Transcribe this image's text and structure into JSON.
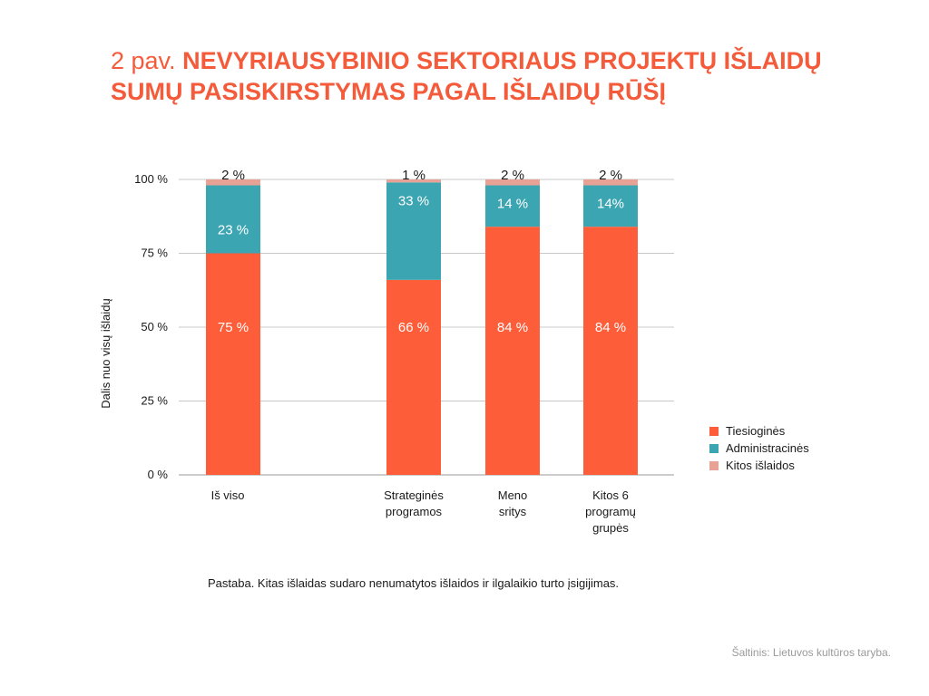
{
  "title_prefix": "2 pav.",
  "title_main": "NEVYRIAUSYBINIO SEKTORIAUS PROJEKTŲ IŠLAIDŲ SUMŲ PASISKIRSTYMAS PAGAL IŠLAIDŲ RŪŠĮ",
  "note": "Pastaba. Kitas išlaidas sudaro nenumatytos išlaidos ir ilgalaikio turto įsigijimas.",
  "source": "Šaltinis: Lietuvos kultūros taryba.",
  "colors": {
    "tiesiogines": "#fe5d3a",
    "administracines": "#3ba5b2",
    "kitos": "#e8a195",
    "title": "#f45b3a",
    "grid": "#c8c8c8"
  },
  "chart_data": {
    "type": "bar",
    "stacked": true,
    "ylabel": "Dalis nuo visų išlaidų",
    "ylim": [
      0,
      100
    ],
    "yticks": [
      "0 %",
      "25 %",
      "50 %",
      "75 %",
      "100 %"
    ],
    "categories": [
      [
        "Iš viso"
      ],
      [
        "Strateginės",
        "programos"
      ],
      [
        "Meno",
        "sritys"
      ],
      [
        "Kitos 6",
        "programų",
        "grupės"
      ]
    ],
    "series": [
      {
        "name": "Tiesioginės",
        "values": [
          75,
          66,
          84,
          84
        ],
        "labels": [
          "75 %",
          "66 %",
          "84 %",
          "84 %"
        ]
      },
      {
        "name": "Administracinės",
        "values": [
          23,
          33,
          14,
          14
        ],
        "labels": [
          "23 %",
          "33 %",
          "14 %",
          "14%"
        ]
      },
      {
        "name": "Kitos išlaidos",
        "values": [
          2,
          1,
          2,
          2
        ],
        "labels": [
          "2 %",
          "1 %",
          "2 %",
          "2 %"
        ]
      }
    ],
    "legend_position": "right",
    "grid": true
  }
}
